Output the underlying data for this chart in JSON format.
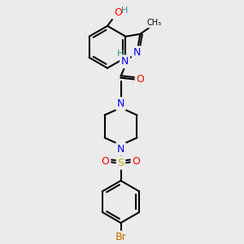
{
  "background_color": "#ebebeb",
  "bond_color": "#000000",
  "atom_colors": {
    "H": "#2e8b8b",
    "O": "#ff0000",
    "N": "#0000ff",
    "S": "#ccaa00",
    "Br": "#cc6600",
    "C": "#000000"
  },
  "figsize": [
    3.0,
    3.0
  ],
  "dpi": 100,
  "atoms": {
    "OH_label": "O",
    "H_label": "H",
    "N1_label": "N",
    "N2_label": "N",
    "H2_label": "H",
    "O2_label": "O",
    "N3_label": "N",
    "N4_label": "N",
    "S_label": "S",
    "O3_label": "O",
    "O4_label": "O",
    "Br_label": "Br"
  }
}
